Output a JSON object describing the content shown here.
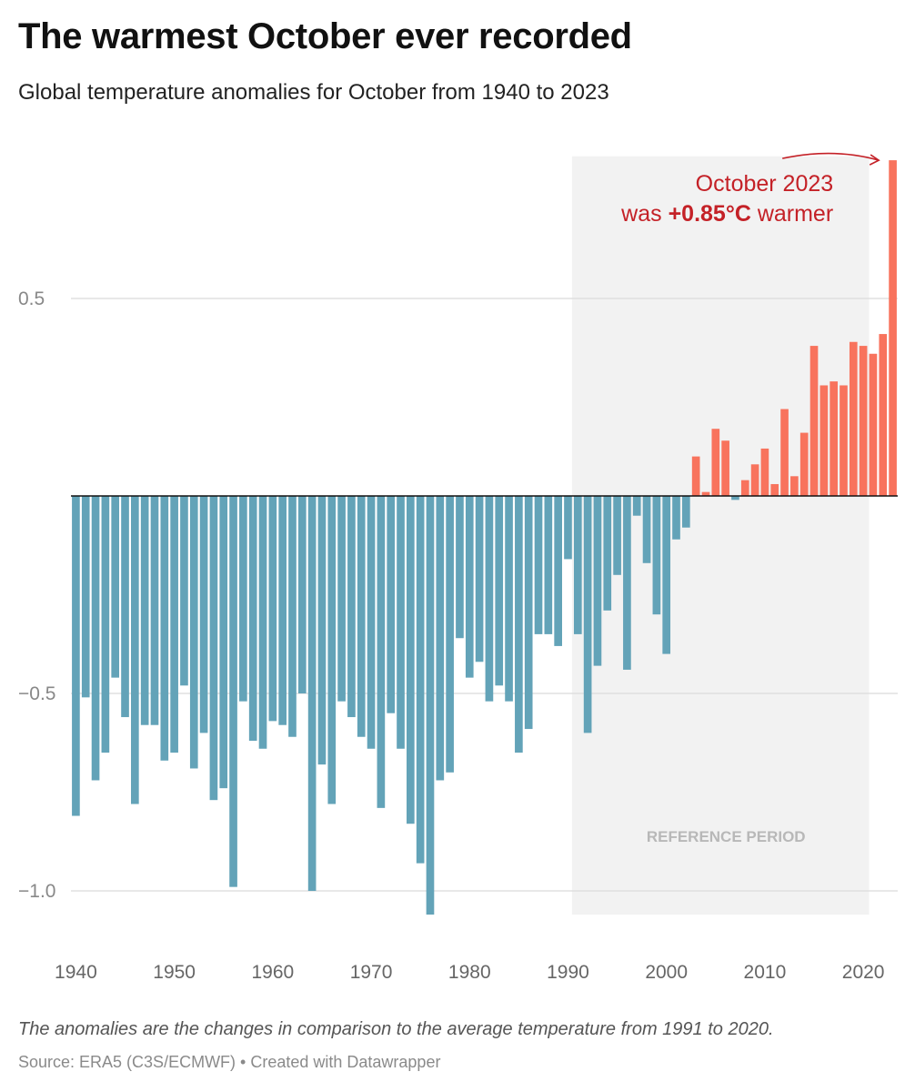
{
  "title": "The warmest October ever recorded",
  "subtitle": "Global temperature anomalies for October from 1940 to 2023",
  "note": "The anomalies are the changes in comparison to the average temperature from 1991 to 2020.",
  "source": "Source: ERA5 (C3S/ECMWF) • Created with Datawrapper",
  "colors": {
    "negative": "#63a3b8",
    "positive": "#f8735d",
    "annotation": "#c42127",
    "reference_band": "#f2f2f2",
    "reference_label": "#b8b8b8",
    "gridline": "#e0e0e0",
    "axis_label": "#888888",
    "baseline": "#111111"
  },
  "chart_data": {
    "type": "bar",
    "xlabel": "",
    "ylabel": "",
    "ylim": [
      -1.06,
      0.86
    ],
    "y_ticks": [
      0.5,
      -0.5,
      -1.0
    ],
    "y_tick_labels": [
      "0.5",
      "−0.5",
      "−1.0"
    ],
    "x_tick_years": [
      1940,
      1950,
      1960,
      1970,
      1980,
      1990,
      2000,
      2010,
      2020
    ],
    "x_tick_labels": [
      "1940",
      "1950",
      "1960",
      "1970",
      "1980",
      "1990",
      "2000",
      "2010",
      "2020"
    ],
    "grid": true,
    "reference_period": {
      "label": "REFERENCE PERIOD",
      "start": 1991,
      "end": 2020
    },
    "annotation": {
      "year": 2023,
      "line1": "October 2023",
      "line2_prefix": "was ",
      "line2_bold": "+0.85°C",
      "line2_suffix": " warmer"
    },
    "years": [
      1940,
      1941,
      1942,
      1943,
      1944,
      1945,
      1946,
      1947,
      1948,
      1949,
      1950,
      1951,
      1952,
      1953,
      1954,
      1955,
      1956,
      1957,
      1958,
      1959,
      1960,
      1961,
      1962,
      1963,
      1964,
      1965,
      1966,
      1967,
      1968,
      1969,
      1970,
      1971,
      1972,
      1973,
      1974,
      1975,
      1976,
      1977,
      1978,
      1979,
      1980,
      1981,
      1982,
      1983,
      1984,
      1985,
      1986,
      1987,
      1988,
      1989,
      1990,
      1991,
      1992,
      1993,
      1994,
      1995,
      1996,
      1997,
      1998,
      1999,
      2000,
      2001,
      2002,
      2003,
      2004,
      2005,
      2006,
      2007,
      2008,
      2009,
      2010,
      2011,
      2012,
      2013,
      2014,
      2015,
      2016,
      2017,
      2018,
      2019,
      2020,
      2021,
      2022,
      2023
    ],
    "values": [
      -0.81,
      -0.51,
      -0.72,
      -0.65,
      -0.46,
      -0.56,
      -0.78,
      -0.58,
      -0.58,
      -0.67,
      -0.65,
      -0.48,
      -0.69,
      -0.6,
      -0.77,
      -0.74,
      -0.99,
      -0.52,
      -0.62,
      -0.64,
      -0.57,
      -0.58,
      -0.61,
      -0.5,
      -1.0,
      -0.68,
      -0.78,
      -0.52,
      -0.56,
      -0.61,
      -0.64,
      -0.79,
      -0.55,
      -0.64,
      -0.83,
      -0.93,
      -1.06,
      -0.72,
      -0.7,
      -0.36,
      -0.46,
      -0.42,
      -0.52,
      -0.48,
      -0.52,
      -0.65,
      -0.59,
      -0.35,
      -0.35,
      -0.38,
      -0.16,
      -0.35,
      -0.6,
      -0.43,
      -0.29,
      -0.2,
      -0.44,
      -0.05,
      -0.17,
      -0.3,
      -0.4,
      -0.11,
      -0.08,
      0.1,
      0.01,
      0.17,
      0.14,
      -0.01,
      0.04,
      0.08,
      0.12,
      0.03,
      0.22,
      0.05,
      0.16,
      0.38,
      0.28,
      0.29,
      0.28,
      0.39,
      0.38,
      0.36,
      0.41,
      0.85
    ]
  }
}
